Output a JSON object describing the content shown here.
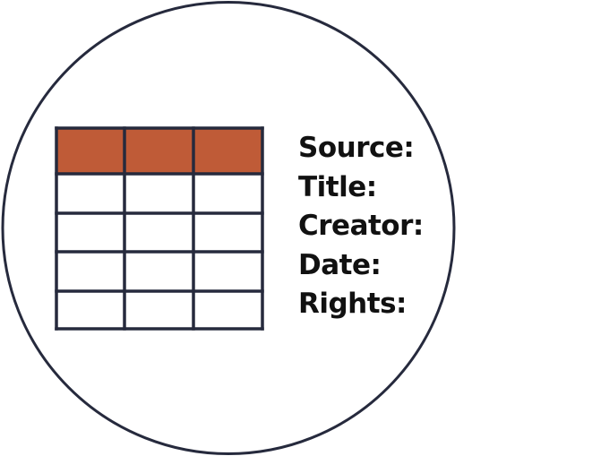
{
  "colors": {
    "outline": "#262a3d",
    "header_fill": "#bf5b37",
    "cell_fill": "#ffffff",
    "text": "#111111"
  },
  "table_icon": {
    "rows": 5,
    "columns": 3,
    "header_rows": 1
  },
  "metadata_fields": [
    {
      "label": "Source:"
    },
    {
      "label": "Title:"
    },
    {
      "label": "Creator:"
    },
    {
      "label": "Date:"
    },
    {
      "label": "Rights:"
    }
  ]
}
